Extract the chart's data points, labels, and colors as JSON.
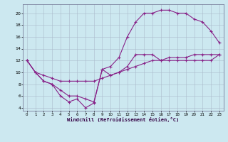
{
  "background_color": "#cce8f0",
  "grid_color": "#aabbcc",
  "line_color": "#882288",
  "xlabel": "Windchill (Refroidissement éolien,°C)",
  "xlim": [
    -0.5,
    23.5
  ],
  "ylim": [
    3.5,
    21.5
  ],
  "yticks": [
    4,
    6,
    8,
    10,
    12,
    14,
    16,
    18,
    20
  ],
  "xticks": [
    0,
    1,
    2,
    3,
    4,
    5,
    6,
    7,
    8,
    9,
    10,
    11,
    12,
    13,
    14,
    15,
    16,
    17,
    18,
    19,
    20,
    21,
    22,
    23
  ],
  "series1_x": [
    0,
    1,
    2,
    3,
    4,
    5,
    6,
    7,
    8,
    9,
    10,
    11,
    12,
    13,
    14,
    15,
    16,
    17,
    18,
    19,
    20,
    21,
    22,
    23
  ],
  "series1_y": [
    12,
    10,
    8.5,
    8,
    6,
    5,
    5.5,
    4,
    4.8,
    10.5,
    9.5,
    10,
    11,
    13,
    13,
    13,
    12,
    12,
    12,
    12,
    12,
    12,
    12,
    13
  ],
  "series2_x": [
    0,
    1,
    2,
    3,
    4,
    5,
    6,
    7,
    8,
    9,
    10,
    11,
    12,
    13,
    14,
    15,
    16,
    17,
    18,
    19,
    20,
    21,
    22,
    23
  ],
  "series2_y": [
    12,
    10,
    9.5,
    9,
    8.5,
    8.5,
    8.5,
    8.5,
    8.5,
    9,
    9.5,
    10,
    10.5,
    11,
    11.5,
    12,
    12,
    12.5,
    12.5,
    12.5,
    13,
    13,
    13,
    13
  ],
  "series3_x": [
    0,
    1,
    2,
    3,
    4,
    5,
    6,
    7,
    8,
    9,
    10,
    11,
    12,
    13,
    14,
    15,
    16,
    17,
    18,
    19,
    20,
    21,
    22,
    23
  ],
  "series3_y": [
    12,
    10,
    8.5,
    8,
    7,
    6,
    6,
    5.5,
    5,
    10.5,
    11,
    12.5,
    16,
    18.5,
    20,
    20,
    20.5,
    20.5,
    20,
    20,
    19,
    18.5,
    17,
    15
  ]
}
